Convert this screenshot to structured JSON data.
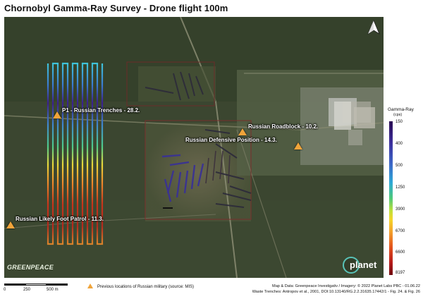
{
  "title": "Chornobyl Gamma-Ray Survey - Drone flight 100m",
  "north_arrow_icon": "north-arrow-icon",
  "sites": [
    {
      "id": "p1",
      "label": "P1  - Russian Trenches - 28.2.",
      "marker": "triangle"
    },
    {
      "id": "roadblock",
      "label": "Russian Roadblock - 10.2.",
      "marker": "triangle"
    },
    {
      "id": "defensive",
      "label": "Russian Defensive Position - 14.3.",
      "marker": "triangle"
    },
    {
      "id": "foot-patrol",
      "label": "Russian Likely Foot Patrol - 11.3.",
      "marker": "triangle"
    }
  ],
  "marker_color": "#f0a43a",
  "logos": {
    "greenpeace": "GREENPEACE",
    "planet": "planet"
  },
  "legend": {
    "title": "Gamma-Ray",
    "unit": "(cps)",
    "ticks": [
      "150",
      "400",
      "500",
      "1250",
      "3900",
      "6700",
      "6600",
      "8197"
    ],
    "colors": [
      "#2a0a52",
      "#3c68c8",
      "#4ec97a",
      "#f5d52a",
      "#e2521d",
      "#6e0b10"
    ]
  },
  "scale": {
    "labels": [
      "0",
      "250",
      "500 m"
    ]
  },
  "footer": {
    "marker_legend": "Previous locations of Russian military (source: MIS)",
    "credits_line1": "Map & Data: Greenpeace Investigativ / Imagery: © 2022 Planet Labs PBC - 01.06.22",
    "credits_line2": "Waste Trenches: Antropov et al., 2001,  DOI:10.13140/RG.2.2.31635.17442/1 - Fig. 24. & Fig. 26"
  }
}
